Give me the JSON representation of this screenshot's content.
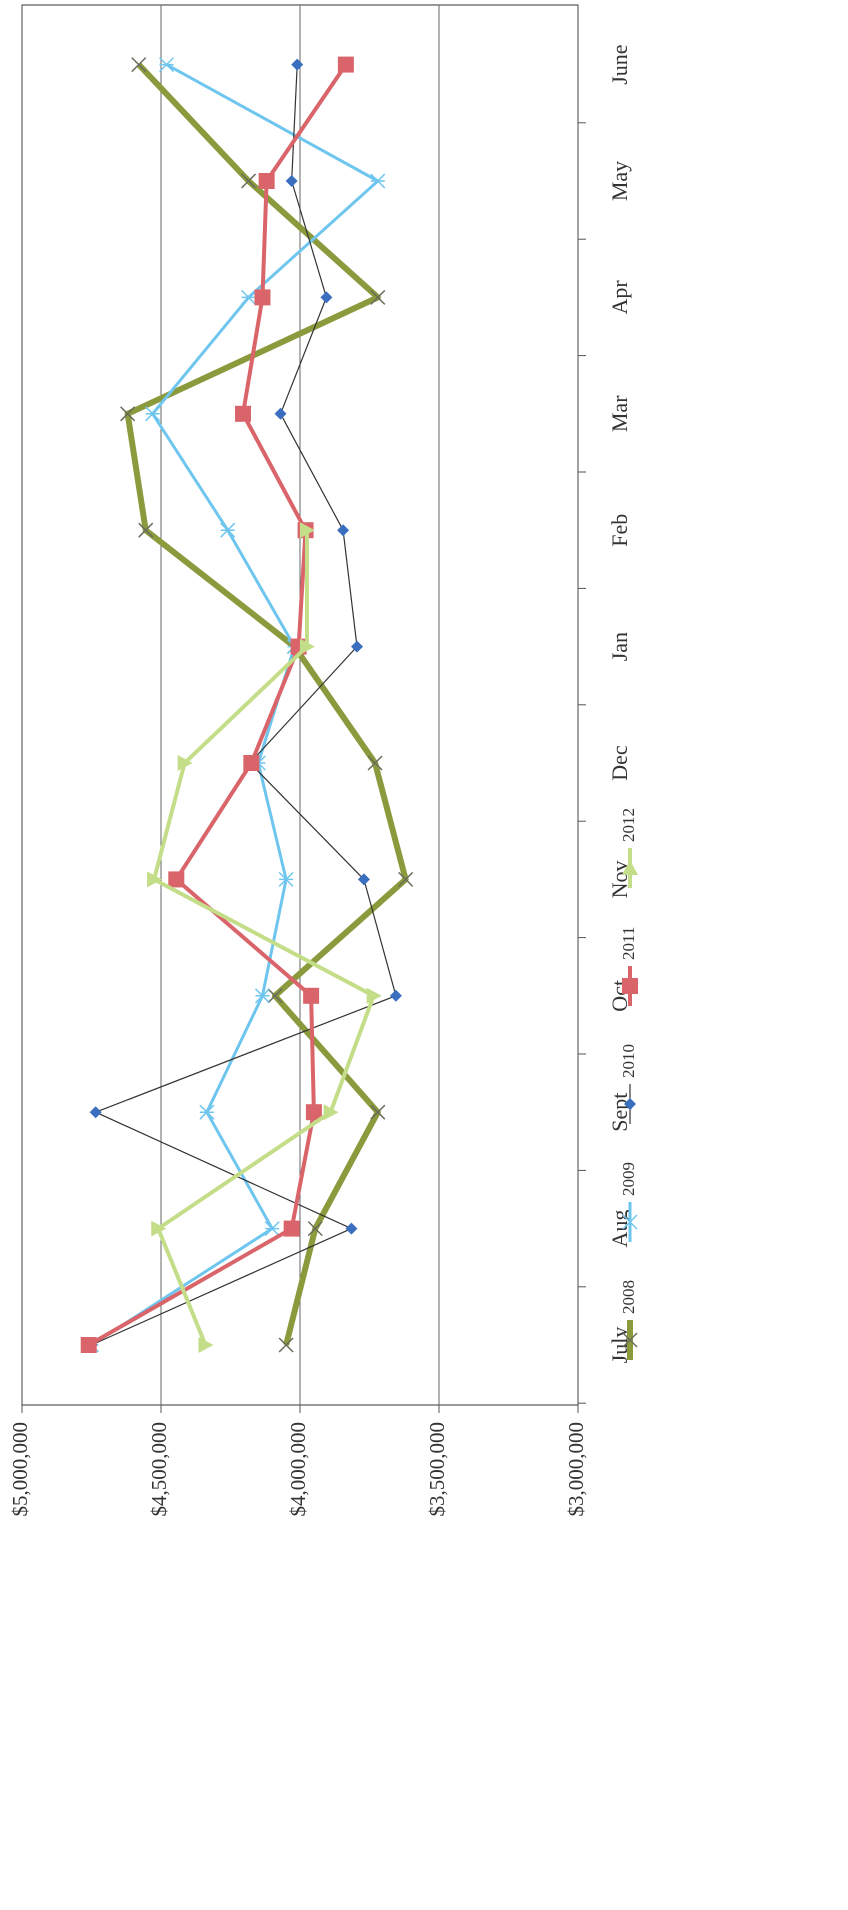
{
  "chart_data": {
    "type": "line",
    "orientation": "rotated-ccw",
    "categories": [
      "July",
      "Aug",
      "Sept",
      "Oct",
      "Nov",
      "Dec",
      "Jan",
      "Feb",
      "Mar",
      "Apr",
      "May",
      "June"
    ],
    "ylim": [
      3000000,
      5000000
    ],
    "yticks": [
      {
        "value": 5000000,
        "label": "$5,000,000"
      },
      {
        "value": 4500000,
        "label": "$4,500,000"
      },
      {
        "value": 4000000,
        "label": "$4,000,000"
      },
      {
        "value": 3500000,
        "label": "$3,500,000"
      },
      {
        "value": 3000000,
        "label": "$3,000,000"
      }
    ],
    "grid": true,
    "series": [
      {
        "name": "2008",
        "color": "#8a9a3c",
        "line_color": "#8a9a3c",
        "line_width": 6,
        "marker": "x",
        "values": [
          4050000,
          3945000,
          3720000,
          4090000,
          3620000,
          3730000,
          4020000,
          4555000,
          4620000,
          3720000,
          4185000,
          4580000
        ]
      },
      {
        "name": "2009",
        "color": "#6ec6ef",
        "line_color": "#6ec6ef",
        "line_width": 3,
        "marker": "asterisk",
        "values": [
          4750000,
          4100000,
          4335000,
          4135000,
          4050000,
          4150000,
          4020000,
          4260000,
          4530000,
          4185000,
          3720000,
          4480000
        ]
      },
      {
        "name": "2010",
        "color": "#3a6fbf",
        "line_color": "#333333",
        "line_width": 1.2,
        "marker": "diamond",
        "values": [
          4750000,
          3815000,
          4735000,
          3655000,
          3770000,
          4180000,
          3795000,
          3845000,
          4070000,
          3905000,
          4030000,
          4010000
        ]
      },
      {
        "name": "2011",
        "color": "#d9646a",
        "line_color": "#d9646a",
        "line_width": 4,
        "marker": "square",
        "values": [
          4760000,
          4030000,
          3950000,
          3960000,
          4445000,
          4175000,
          4005000,
          3980000,
          4205000,
          4135000,
          4120000,
          3835000
        ]
      },
      {
        "name": "2012",
        "color": "#c4dd88",
        "line_color": "#c4dd88",
        "line_width": 4,
        "marker": "triangle",
        "values": [
          4340000,
          4510000,
          3890000,
          3735000,
          4525000,
          4415000,
          3975000,
          3975000,
          null,
          null,
          null,
          null
        ]
      }
    ]
  }
}
